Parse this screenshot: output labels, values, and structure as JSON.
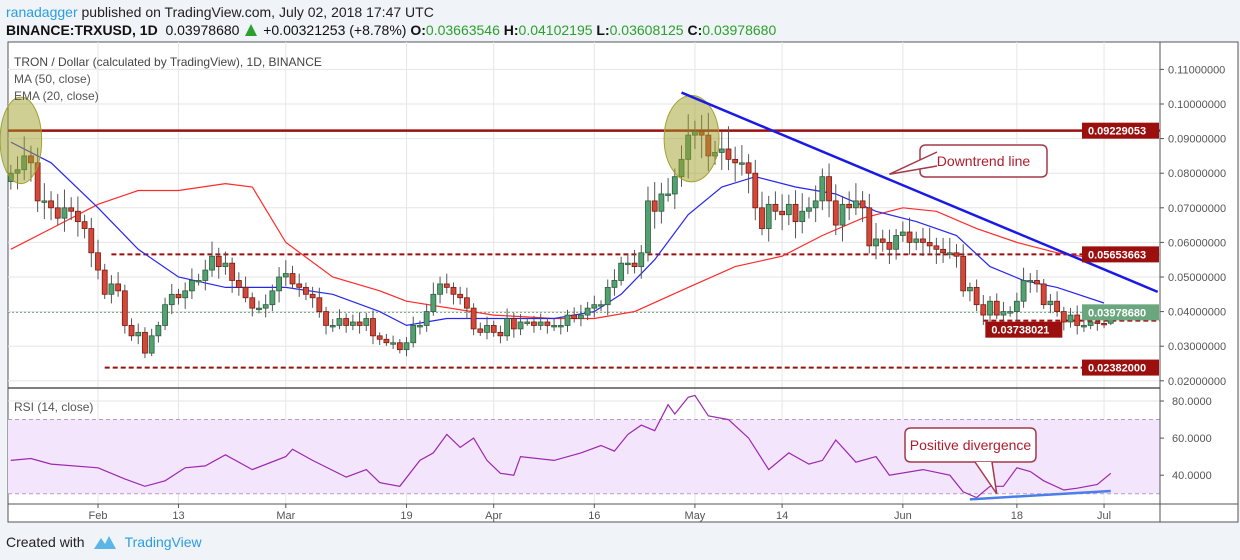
{
  "header": {
    "author": "ranadagger",
    "published": "published on TradingView.com, July 02, 2018 17:47 UTC",
    "symbol": "BINANCE:TRXUSD, 1D",
    "last": "0.03978680",
    "change": "+0.00321253 (+8.78%)",
    "o_label": "O:",
    "o": "0.03663546",
    "h_label": "H:",
    "h": "0.04102195",
    "l_label": "L:",
    "l": "0.03608125",
    "c_label": "C:",
    "c": "0.03978680",
    "change_direction": "up-triangle-icon"
  },
  "legend": {
    "title": "TRON / Dollar (calculated by TradingView), 1D, BINANCE",
    "ma": "MA (50, close)",
    "ema": "EMA (20, close)",
    "rsi": "RSI (14, close)"
  },
  "footer": {
    "created_with": "Created with",
    "brand": "TradingView"
  },
  "colors": {
    "up": "#53a070",
    "down": "#d2493a",
    "ema": "#2626f0",
    "ma": "#ff2a2a",
    "level": "#9b0f0f",
    "rsi": "#9c27b0",
    "rsi_band": "#f3e5fb",
    "last_price": "#6aa77f",
    "trendline": "#1a1ae6"
  },
  "chart_data": [
    {
      "type": "candlestick",
      "title": "TRON / Dollar (calculated by TradingView), 1D, BINANCE",
      "start_date": "2018-01-19",
      "close": [
        0.08,
        0.081,
        0.085,
        0.083,
        0.072,
        0.072,
        0.07,
        0.067,
        0.07,
        0.069,
        0.066,
        0.064,
        0.057,
        0.052,
        0.045,
        0.048,
        0.046,
        0.036,
        0.033,
        0.034,
        0.028,
        0.033,
        0.036,
        0.042,
        0.045,
        0.044,
        0.046,
        0.049,
        0.049,
        0.052,
        0.056,
        0.053,
        0.054,
        0.049,
        0.047,
        0.044,
        0.041,
        0.041,
        0.042,
        0.046,
        0.05,
        0.051,
        0.048,
        0.047,
        0.045,
        0.044,
        0.04,
        0.036,
        0.036,
        0.038,
        0.036,
        0.037,
        0.036,
        0.038,
        0.033,
        0.032,
        0.031,
        0.031,
        0.029,
        0.031,
        0.036,
        0.036,
        0.04,
        0.045,
        0.048,
        0.047,
        0.045,
        0.044,
        0.041,
        0.035,
        0.034,
        0.036,
        0.034,
        0.033,
        0.038,
        0.035,
        0.037,
        0.037,
        0.036,
        0.037,
        0.036,
        0.036,
        0.036,
        0.039,
        0.038,
        0.039,
        0.041,
        0.042,
        0.042,
        0.047,
        0.049,
        0.054,
        0.054,
        0.053,
        0.057,
        0.072,
        0.069,
        0.074,
        0.074,
        0.079,
        0.084,
        0.091,
        0.092,
        0.091,
        0.085,
        0.086,
        0.087,
        0.084,
        0.083,
        0.083,
        0.08,
        0.07,
        0.064,
        0.071,
        0.069,
        0.068,
        0.071,
        0.066,
        0.069,
        0.07,
        0.072,
        0.079,
        0.072,
        0.065,
        0.071,
        0.07,
        0.072,
        0.07,
        0.059,
        0.061,
        0.06,
        0.058,
        0.062,
        0.063,
        0.06,
        0.061,
        0.06,
        0.059,
        0.058,
        0.057,
        0.057,
        0.056,
        0.046,
        0.047,
        0.042,
        0.039,
        0.043,
        0.039,
        0.04,
        0.04,
        0.043,
        0.049,
        0.049,
        0.048,
        0.042,
        0.043,
        0.04,
        0.037,
        0.039,
        0.036,
        0.036,
        0.037,
        0.0366,
        0.03657427,
        0.0397868
      ],
      "last_candle": {
        "open": 0.03663546,
        "high": 0.04102195,
        "low": 0.03608125,
        "close": 0.0397868
      },
      "ema20": [
        [
          "2018-01-19",
          0.089
        ],
        [
          "2018-01-25",
          0.083
        ],
        [
          "2018-02-01",
          0.07
        ],
        [
          "2018-02-07",
          0.058
        ],
        [
          "2018-02-13",
          0.05
        ],
        [
          "2018-02-20",
          0.047
        ],
        [
          "2018-03-01",
          0.047
        ],
        [
          "2018-03-08",
          0.045
        ],
        [
          "2018-03-15",
          0.04
        ],
        [
          "2018-03-19",
          0.036
        ],
        [
          "2018-03-25",
          0.038
        ],
        [
          "2018-04-02",
          0.038
        ],
        [
          "2018-04-10",
          0.038
        ],
        [
          "2018-04-16",
          0.04
        ],
        [
          "2018-04-20",
          0.045
        ],
        [
          "2018-04-25",
          0.055
        ],
        [
          "2018-04-30",
          0.068
        ],
        [
          "2018-05-05",
          0.076
        ],
        [
          "2018-05-10",
          0.079
        ],
        [
          "2018-05-16",
          0.076
        ],
        [
          "2018-05-22",
          0.074
        ],
        [
          "2018-05-28",
          0.069
        ],
        [
          "2018-06-03",
          0.066
        ],
        [
          "2018-06-09",
          0.062
        ],
        [
          "2018-06-14",
          0.053
        ],
        [
          "2018-06-19",
          0.049
        ],
        [
          "2018-06-24",
          0.047
        ],
        [
          "2018-07-01",
          0.0425
        ]
      ],
      "ma50": [
        [
          "2018-01-19",
          0.058
        ],
        [
          "2018-01-25",
          0.064
        ],
        [
          "2018-02-01",
          0.071
        ],
        [
          "2018-02-07",
          0.075
        ],
        [
          "2018-02-13",
          0.075
        ],
        [
          "2018-02-20",
          0.077
        ],
        [
          "2018-02-24",
          0.076
        ],
        [
          "2018-03-01",
          0.06
        ],
        [
          "2018-03-08",
          0.05
        ],
        [
          "2018-03-15",
          0.046
        ],
        [
          "2018-03-19",
          0.043
        ],
        [
          "2018-04-01",
          0.039
        ],
        [
          "2018-04-10",
          0.038
        ],
        [
          "2018-04-16",
          0.038
        ],
        [
          "2018-04-22",
          0.04
        ],
        [
          "2018-04-30",
          0.047
        ],
        [
          "2018-05-07",
          0.053
        ],
        [
          "2018-05-14",
          0.056
        ],
        [
          "2018-05-20",
          0.062
        ],
        [
          "2018-05-26",
          0.067
        ],
        [
          "2018-06-01",
          0.07
        ],
        [
          "2018-06-06",
          0.069
        ],
        [
          "2018-06-12",
          0.064
        ],
        [
          "2018-06-18",
          0.06
        ],
        [
          "2018-06-24",
          0.057
        ],
        [
          "2018-07-01",
          0.055
        ]
      ],
      "y_ticks": [
        "0.11000000",
        "0.10000000",
        "0.09000000",
        "0.08000000",
        "0.07000000",
        "0.06000000",
        "0.05000000",
        "0.04000000",
        "0.03000000",
        "0.02000000"
      ],
      "levels": [
        {
          "price": 0.09229053,
          "label": "0.09229053",
          "style": "solid",
          "from": "2018-01-19"
        },
        {
          "price": 0.05653663,
          "label": "0.05653663",
          "style": "dashed",
          "from": "2018-02-03"
        },
        {
          "price": 0.03738021,
          "label": "0.03738021",
          "style": "dashed",
          "from": "2018-06-13"
        },
        {
          "price": 0.02382,
          "label": "0.02382000",
          "style": "dashed",
          "from": "2018-02-02"
        }
      ],
      "last_price_label": "0.03978680",
      "trendline": {
        "start": [
          "2018-04-29",
          0.1033
        ],
        "end": [
          "2018-07-09",
          0.0457
        ]
      },
      "highlights": [
        {
          "from": "2018-01-18",
          "to": "2018-01-23",
          "low": 0.077,
          "high": 0.102
        },
        {
          "from": "2018-04-27",
          "to": "2018-05-04",
          "low": 0.0775,
          "high": 0.1025
        }
      ],
      "annotations": [
        {
          "text": "Downtrend line",
          "target": [
            "2018-05-30",
            0.0797
          ]
        }
      ]
    },
    {
      "type": "line",
      "title": "RSI (14, close)",
      "band": [
        30,
        70
      ],
      "y_ticks": [
        "80.0000",
        "60.0000",
        "40.0000"
      ],
      "rsi": [
        [
          "2018-01-19",
          48
        ],
        [
          "2018-01-22",
          49
        ],
        [
          "2018-01-25",
          46
        ],
        [
          "2018-02-01",
          44
        ],
        [
          "2018-02-05",
          38
        ],
        [
          "2018-02-08",
          34
        ],
        [
          "2018-02-11",
          37
        ],
        [
          "2018-02-14",
          44
        ],
        [
          "2018-02-17",
          45
        ],
        [
          "2018-02-20",
          51
        ],
        [
          "2018-02-24",
          43
        ],
        [
          "2018-03-01",
          50
        ],
        [
          "2018-03-02",
          54
        ],
        [
          "2018-03-05",
          48
        ],
        [
          "2018-03-10",
          39
        ],
        [
          "2018-03-13",
          43
        ],
        [
          "2018-03-15",
          36
        ],
        [
          "2018-03-18",
          34
        ],
        [
          "2018-03-21",
          48
        ],
        [
          "2018-03-23",
          52
        ],
        [
          "2018-03-25",
          62
        ],
        [
          "2018-03-27",
          55
        ],
        [
          "2018-03-29",
          60
        ],
        [
          "2018-03-31",
          48
        ],
        [
          "2018-04-02",
          41
        ],
        [
          "2018-04-04",
          40
        ],
        [
          "2018-04-05",
          50
        ],
        [
          "2018-04-10",
          48
        ],
        [
          "2018-04-14",
          52
        ],
        [
          "2018-04-17",
          56
        ],
        [
          "2018-04-19",
          53
        ],
        [
          "2018-04-21",
          62
        ],
        [
          "2018-04-23",
          67
        ],
        [
          "2018-04-25",
          64
        ],
        [
          "2018-04-27",
          78
        ],
        [
          "2018-04-28",
          73
        ],
        [
          "2018-04-30",
          82
        ],
        [
          "2018-05-01",
          83
        ],
        [
          "2018-05-03",
          72
        ],
        [
          "2018-05-06",
          70
        ],
        [
          "2018-05-09",
          60
        ],
        [
          "2018-05-12",
          43
        ],
        [
          "2018-05-15",
          52
        ],
        [
          "2018-05-18",
          46
        ],
        [
          "2018-05-20",
          48
        ],
        [
          "2018-05-22",
          59
        ],
        [
          "2018-05-25",
          47
        ],
        [
          "2018-05-28",
          50
        ],
        [
          "2018-05-30",
          40
        ],
        [
          "2018-06-04",
          43
        ],
        [
          "2018-06-08",
          40
        ],
        [
          "2018-06-10",
          31
        ],
        [
          "2018-06-12",
          28
        ],
        [
          "2018-06-14",
          34
        ],
        [
          "2018-06-16",
          34
        ],
        [
          "2018-06-18",
          44
        ],
        [
          "2018-06-20",
          42
        ],
        [
          "2018-06-22",
          37
        ],
        [
          "2018-06-25",
          32
        ],
        [
          "2018-06-27",
          33
        ],
        [
          "2018-06-30",
          35
        ],
        [
          "2018-07-02",
          41
        ]
      ],
      "divergence_line": {
        "start": [
          "2018-06-11",
          27
        ],
        "end": [
          "2018-07-02",
          31.5
        ]
      },
      "annotations": [
        {
          "text": "Positive divergence",
          "target": [
            "2018-06-15",
            30
          ]
        }
      ]
    }
  ],
  "x_ticks": [
    [
      "2018-02-01",
      "Feb"
    ],
    [
      "2018-02-13",
      "13"
    ],
    [
      "2018-03-01",
      "Mar"
    ],
    [
      "2018-03-19",
      "19"
    ],
    [
      "2018-04-01",
      "Apr"
    ],
    [
      "2018-04-16",
      "16"
    ],
    [
      "2018-05-01",
      "May"
    ],
    [
      "2018-05-14",
      "14"
    ],
    [
      "2018-06-01",
      "Jun"
    ],
    [
      "2018-06-18",
      "18"
    ],
    [
      "2018-07-01",
      "Jul"
    ]
  ]
}
